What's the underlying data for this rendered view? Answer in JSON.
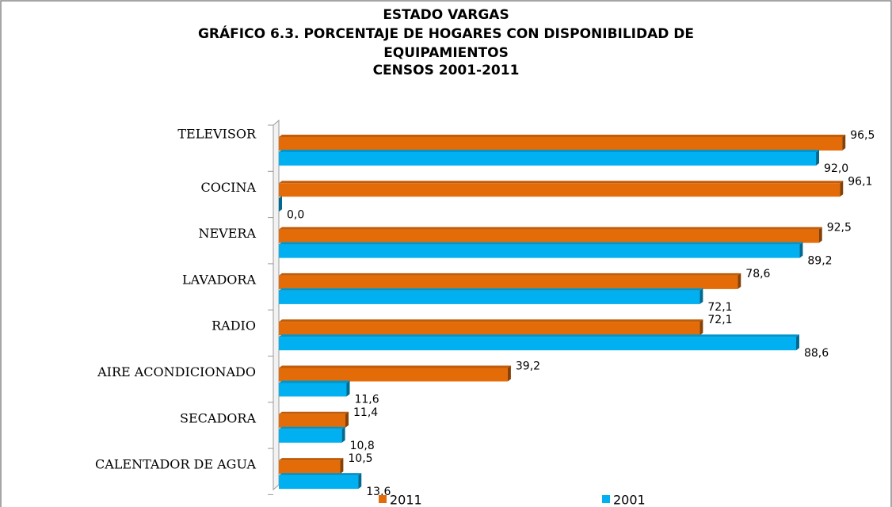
{
  "chart_data": {
    "type": "barh",
    "title": [
      "ESTADO VARGAS",
      "GRÁFICO 6.3. PORCENTAJE DE HOGARES CON DISPONIBILIDAD  DE",
      "EQUIPAMIENTOS",
      "CENSOS 2001-2011"
    ],
    "categories": [
      "TELEVISOR",
      "COCINA",
      "NEVERA",
      "LAVADORA",
      "RADIO",
      "AIRE ACONDICIONADO",
      "SECADORA",
      "CALENTADOR DE AGUA"
    ],
    "series": [
      {
        "name": "2011",
        "color": "#e36c09",
        "values": [
          96.5,
          96.1,
          92.5,
          78.6,
          72.1,
          39.2,
          11.4,
          10.5
        ],
        "value_labels": [
          "96,5",
          "96,1",
          "92,5",
          "78,6",
          "72,1",
          "39,2",
          "11,4",
          "10,5"
        ]
      },
      {
        "name": "2001",
        "color": "#00b0f0",
        "values": [
          92.0,
          0.0,
          89.2,
          72.1,
          88.6,
          11.6,
          10.8,
          13.6
        ],
        "value_labels": [
          "92,0",
          "0,0",
          "89,2",
          "72,1",
          "88,6",
          "11,6",
          "10,8",
          "13,6"
        ]
      }
    ],
    "xlim": [
      0,
      100
    ]
  }
}
